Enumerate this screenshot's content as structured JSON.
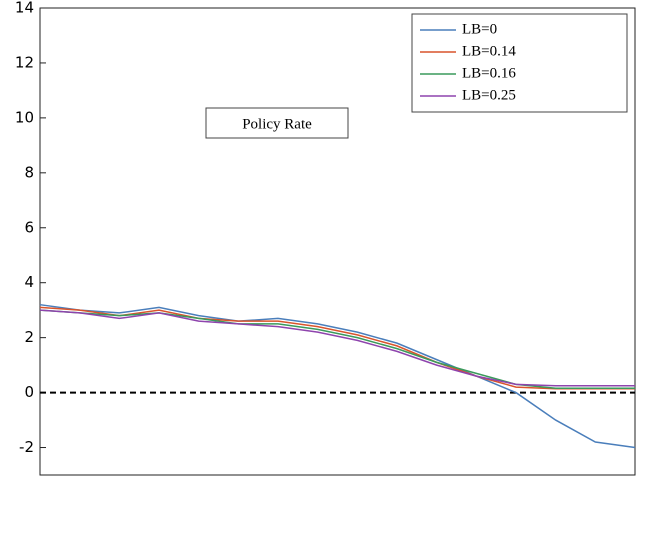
{
  "chart_data": {
    "type": "line",
    "title": "Policy Rate",
    "x": [
      0,
      1,
      2,
      3,
      4,
      5,
      6,
      7,
      8,
      9,
      10,
      11,
      12,
      13,
      14,
      15
    ],
    "xlim": [
      0,
      15
    ],
    "ylim": [
      -3,
      14
    ],
    "yticks": [
      -2,
      0,
      2,
      4,
      6,
      8,
      10,
      12,
      14
    ],
    "zero_line": true,
    "legend": "upper right",
    "series": [
      {
        "name": "LB=0",
        "color": "#4a7ebb",
        "values": [
          3.2,
          3.0,
          2.9,
          3.1,
          2.8,
          2.6,
          2.7,
          2.5,
          2.2,
          1.8,
          1.2,
          0.6,
          0.0,
          -1.0,
          -1.8,
          -2.0
        ]
      },
      {
        "name": "LB=0.14",
        "color": "#d9542b",
        "values": [
          3.1,
          3.0,
          2.8,
          3.0,
          2.7,
          2.6,
          2.6,
          2.4,
          2.1,
          1.7,
          1.1,
          0.6,
          0.2,
          0.14,
          0.14,
          0.14
        ]
      },
      {
        "name": "LB=0.16",
        "color": "#3a9a5b",
        "values": [
          3.0,
          2.9,
          2.8,
          2.9,
          2.7,
          2.5,
          2.5,
          2.3,
          2.0,
          1.6,
          1.1,
          0.7,
          0.3,
          0.16,
          0.16,
          0.16
        ]
      },
      {
        "name": "LB=0.25",
        "color": "#8e44ad",
        "values": [
          3.0,
          2.9,
          2.7,
          2.9,
          2.6,
          2.5,
          2.4,
          2.2,
          1.9,
          1.5,
          1.0,
          0.6,
          0.3,
          0.25,
          0.25,
          0.25
        ]
      }
    ]
  }
}
